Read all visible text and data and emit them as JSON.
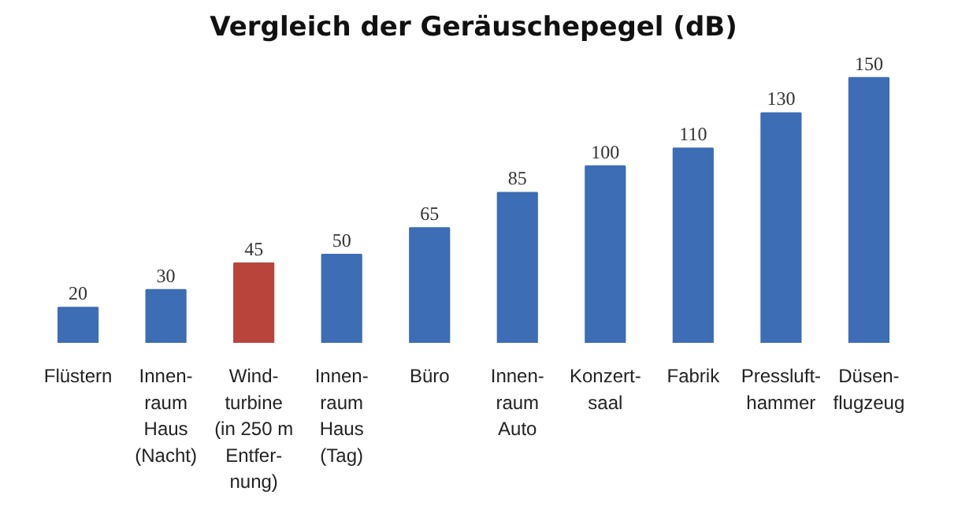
{
  "chart_data": {
    "type": "bar",
    "title": "Vergleich der Geräuschepegel (dB)",
    "categories": [
      "Flüstern",
      "Innen-\nraum\nHaus\n(Nacht)",
      "Wind-\nturbine\n(in 250 m\nEntfer-\nnung)",
      "Innen-\nraum\nHaus\n(Tag)",
      "Büro",
      "Innen-\nraum\nAuto",
      "Konzert-\nsaal",
      "Fabrik",
      "Pressluft-\nhammer",
      "Düsen-\nflugzeug"
    ],
    "values": [
      20,
      30,
      45,
      50,
      65,
      85,
      100,
      110,
      130,
      150
    ],
    "colors": [
      "#3d6db4",
      "#3d6db4",
      "#b8443c",
      "#3d6db4",
      "#3d6db4",
      "#3d6db4",
      "#3d6db4",
      "#3d6db4",
      "#3d6db4",
      "#3d6db4"
    ],
    "data_labels": true,
    "grid": false
  }
}
